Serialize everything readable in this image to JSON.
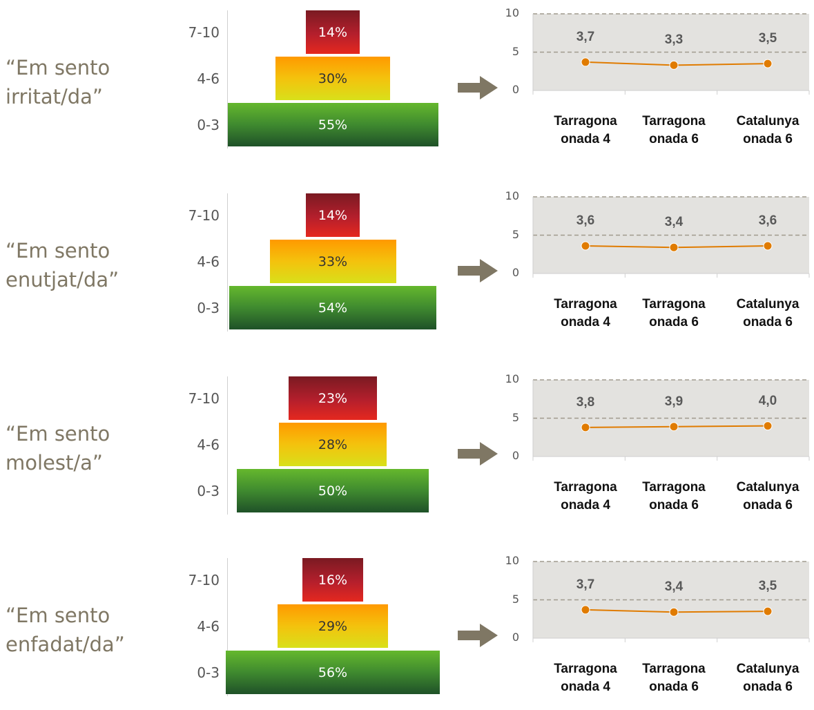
{
  "colors": {
    "label": "#7f7764",
    "plot_bg": "#e3e2df",
    "line": "#e07b00",
    "dash": "#a09a8e",
    "arrow": "#7f7764"
  },
  "icons": {
    "arrow": "right-arrow-icon"
  },
  "chart_data": [
    {
      "type": "pyramid_bar",
      "title": "“Em sento irritat/da”",
      "categories": [
        "7-10",
        "4-6",
        "0-3"
      ],
      "values": [
        14,
        30,
        55
      ],
      "value_labels": [
        "14%",
        "30%",
        "55%"
      ],
      "trend": {
        "type": "line",
        "categories": [
          "Tarragona onada 4",
          "Tarragona onada 6",
          "Catalunya onada 6"
        ],
        "category_lines": [
          [
            "Tarragona",
            "onada 4"
          ],
          [
            "Tarragona",
            "onada 6"
          ],
          [
            "Catalunya",
            "onada 6"
          ]
        ],
        "values": [
          3.7,
          3.3,
          3.5
        ],
        "value_labels": [
          "3,7",
          "3,3",
          "3,5"
        ],
        "ylim": [
          0,
          10
        ],
        "yticks": [
          "10",
          "5",
          "0"
        ]
      }
    },
    {
      "type": "pyramid_bar",
      "title": "“Em sento enutjat/da”",
      "categories": [
        "7-10",
        "4-6",
        "0-3"
      ],
      "values": [
        14,
        33,
        54
      ],
      "value_labels": [
        "14%",
        "33%",
        "54%"
      ],
      "trend": {
        "type": "line",
        "categories": [
          "Tarragona onada 4",
          "Tarragona onada 6",
          "Catalunya onada 6"
        ],
        "category_lines": [
          [
            "Tarragona",
            "onada 4"
          ],
          [
            "Tarragona",
            "onada 6"
          ],
          [
            "Catalunya",
            "onada 6"
          ]
        ],
        "values": [
          3.6,
          3.4,
          3.6
        ],
        "value_labels": [
          "3,6",
          "3,4",
          "3,6"
        ],
        "ylim": [
          0,
          10
        ],
        "yticks": [
          "10",
          "5",
          "0"
        ]
      }
    },
    {
      "type": "pyramid_bar",
      "title": "“Em sento molest/a”",
      "categories": [
        "7-10",
        "4-6",
        "0-3"
      ],
      "values": [
        23,
        28,
        50
      ],
      "value_labels": [
        "23%",
        "28%",
        "50%"
      ],
      "trend": {
        "type": "line",
        "categories": [
          "Tarragona onada 4",
          "Tarragona onada 6",
          "Catalunya onada 6"
        ],
        "category_lines": [
          [
            "Tarragona",
            "onada 4"
          ],
          [
            "Tarragona",
            "onada 6"
          ],
          [
            "Catalunya",
            "onada 6"
          ]
        ],
        "values": [
          3.8,
          3.9,
          4.0
        ],
        "value_labels": [
          "3,8",
          "3,9",
          "4,0"
        ],
        "ylim": [
          0,
          10
        ],
        "yticks": [
          "10",
          "5",
          "0"
        ]
      }
    },
    {
      "type": "pyramid_bar",
      "title": "“Em sento enfadat/da”",
      "categories": [
        "7-10",
        "4-6",
        "0-3"
      ],
      "values": [
        16,
        29,
        56
      ],
      "value_labels": [
        "16%",
        "29%",
        "56%"
      ],
      "trend": {
        "type": "line",
        "categories": [
          "Tarragona onada 4",
          "Tarragona onada 6",
          "Catalunya onada 6"
        ],
        "category_lines": [
          [
            "Tarragona",
            "onada 4"
          ],
          [
            "Tarragona",
            "onada 6"
          ],
          [
            "Catalunya",
            "onada 6"
          ]
        ],
        "values": [
          3.7,
          3.4,
          3.5
        ],
        "value_labels": [
          "3,7",
          "3,4",
          "3,5"
        ],
        "ylim": [
          0,
          10
        ],
        "yticks": [
          "10",
          "5",
          "0"
        ]
      }
    }
  ]
}
